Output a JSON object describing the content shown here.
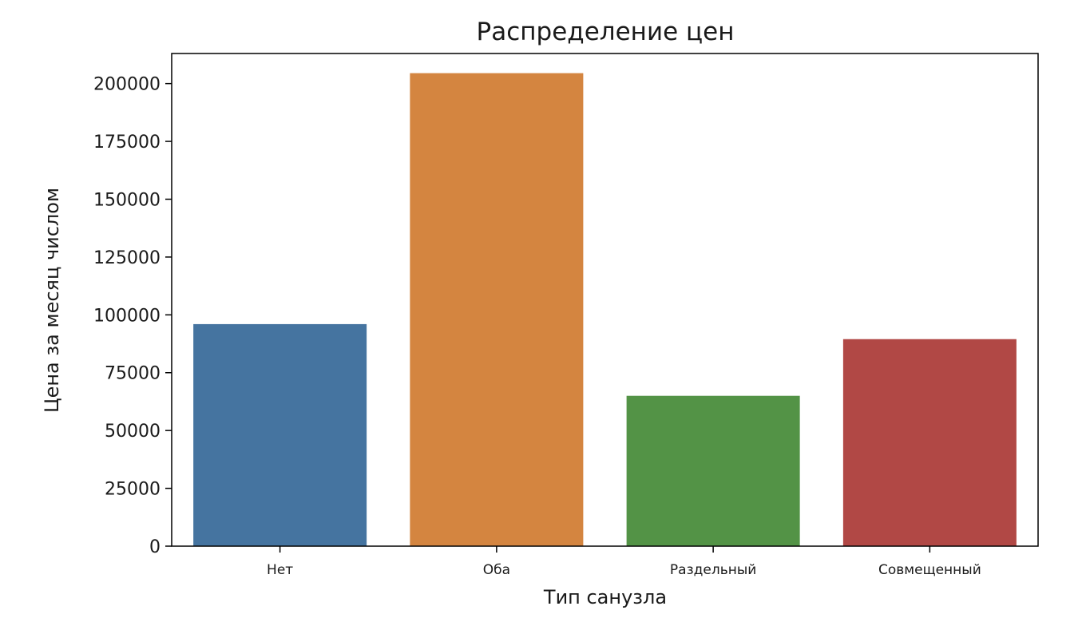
{
  "chart_data": {
    "type": "bar",
    "title": "Распределение цен",
    "xlabel": "Тип санузла",
    "ylabel": "Цена за месяц числом",
    "categories": [
      "Нет",
      "Оба",
      "Раздельный",
      "Совмещенный"
    ],
    "values": [
      96000,
      204500,
      65000,
      89500
    ],
    "colors": [
      "#4574a0",
      "#d48540",
      "#539346",
      "#b14845"
    ],
    "ylim": [
      0,
      213000
    ],
    "yticks": [
      0,
      25000,
      50000,
      75000,
      100000,
      125000,
      150000,
      175000,
      200000
    ],
    "ytick_labels": [
      "0",
      "25000",
      "50000",
      "75000",
      "100000",
      "125000",
      "150000",
      "175000",
      "200000"
    ],
    "grid": false,
    "legend": false
  }
}
